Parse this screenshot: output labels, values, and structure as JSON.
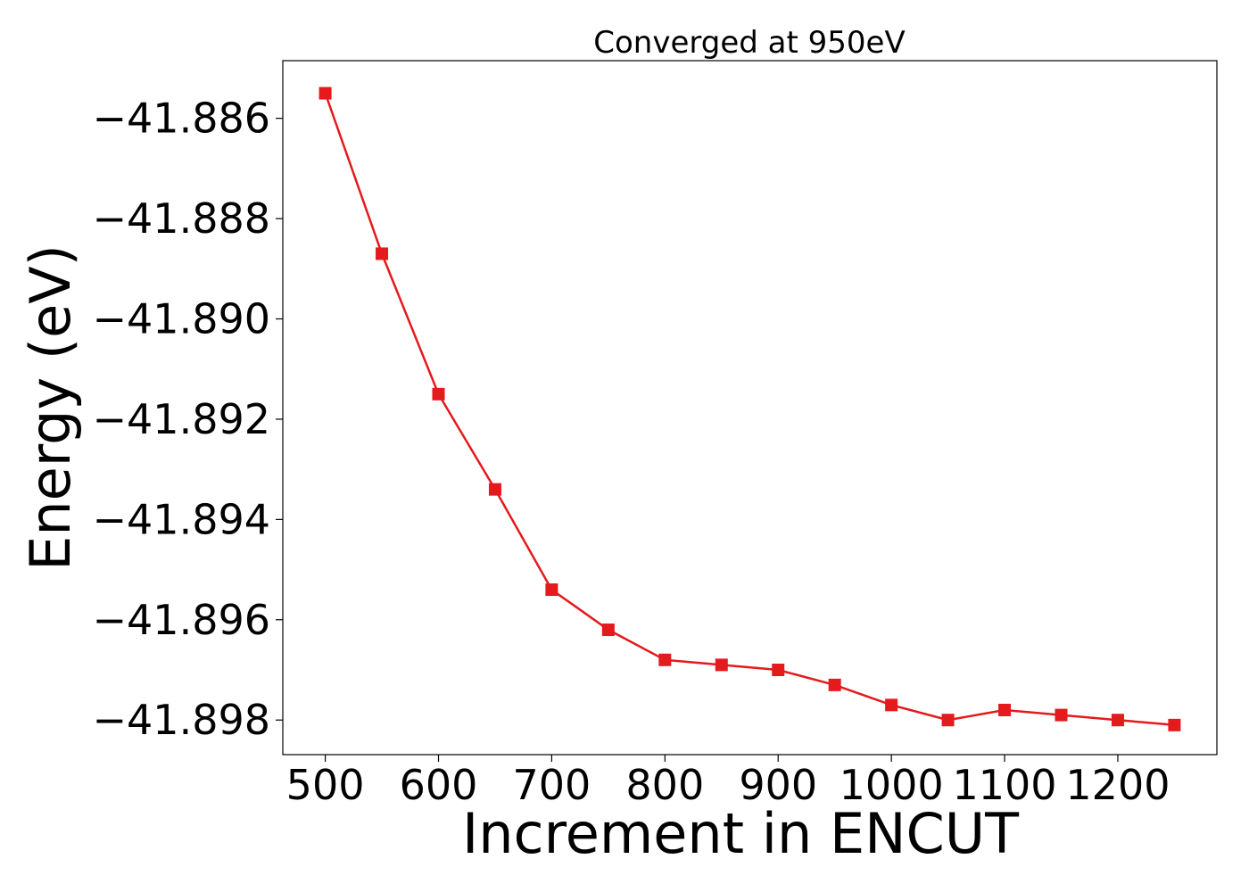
{
  "chart_data": {
    "type": "line",
    "title": "Converged at 950eV",
    "xlabel": "Increment in ENCUT",
    "ylabel": "Energy (eV)",
    "series": [
      {
        "x": [
          500,
          550,
          600,
          650,
          700,
          750,
          800,
          850,
          900,
          950,
          1000,
          1050,
          1100,
          1150,
          1200,
          1250
        ],
        "y": [
          -41.8855,
          -41.8887,
          -41.8915,
          -41.8934,
          -41.8954,
          -41.8962,
          -41.8968,
          -41.8969,
          -41.897,
          -41.8973,
          -41.8977,
          -41.898,
          -41.8978,
          -41.8979,
          -41.898,
          -41.8981
        ]
      }
    ],
    "xticks": [
      500,
      600,
      700,
      800,
      900,
      1000,
      1100,
      1200
    ],
    "xtick_labels": [
      "500",
      "600",
      "700",
      "800",
      "900",
      "1000",
      "1100",
      "1200"
    ],
    "yticks": [
      -41.886,
      -41.888,
      -41.89,
      -41.892,
      -41.894,
      -41.896,
      -41.898
    ],
    "ytick_labels": [
      "−41.886",
      "−41.888",
      "−41.890",
      "−41.892",
      "−41.894",
      "−41.896",
      "−41.898"
    ],
    "xlim": [
      462.5,
      1287.5
    ],
    "ylim": [
      -41.89869,
      -41.88485
    ],
    "line_color": "#e41a1c",
    "marker": "square",
    "grid": false,
    "legend": "none"
  }
}
